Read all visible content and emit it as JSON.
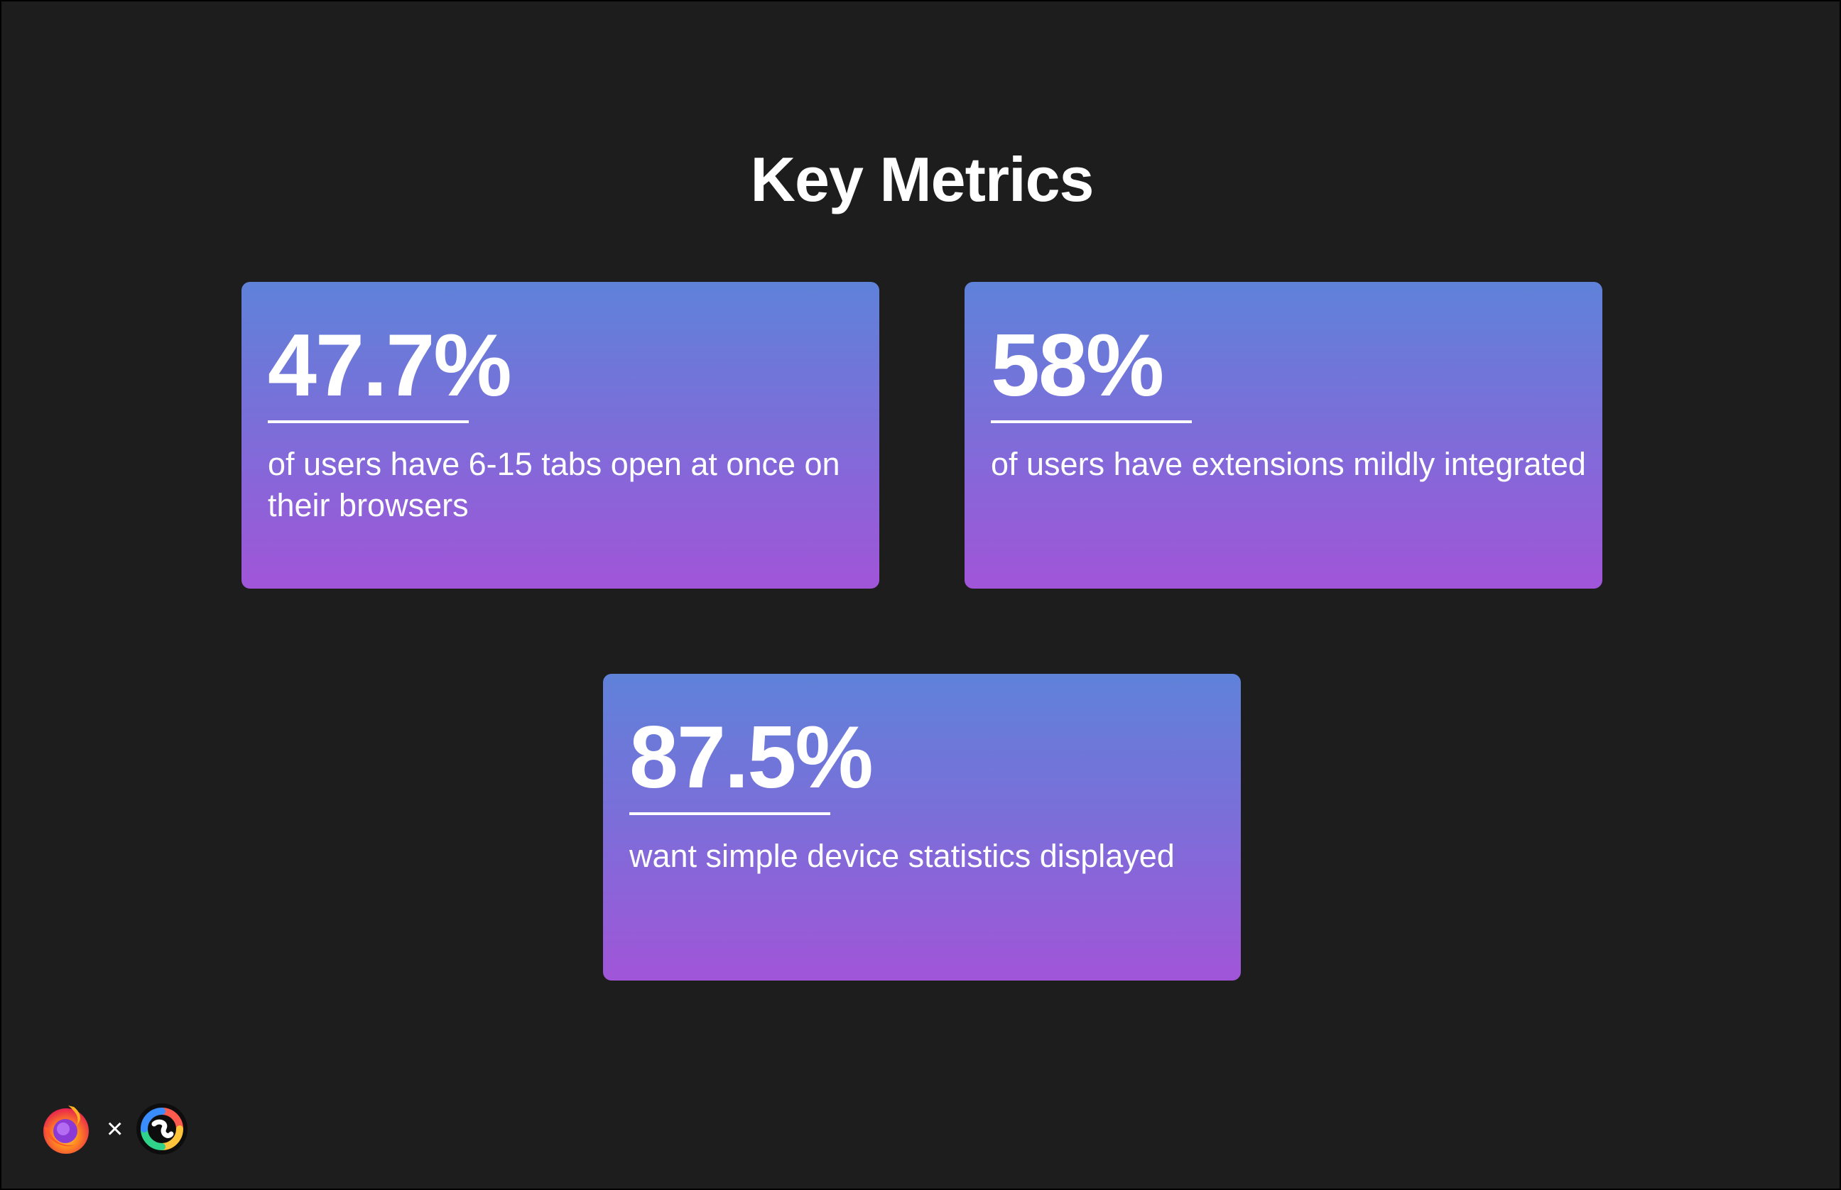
{
  "title": "Key Metrics",
  "metrics": [
    {
      "value": "47.7%",
      "description": "of users have 6-15 tabs open at once on their browsers"
    },
    {
      "value": "58%",
      "description": "of users have extensions mildly integrated"
    },
    {
      "value": "87.5%",
      "description": "want simple device statistics displayed"
    }
  ],
  "footer": {
    "separator": "×",
    "logos": [
      "firefox-logo",
      "colorful-swirl-logo"
    ]
  },
  "colors": {
    "background": "#1d1d1d",
    "card_gradient_top": "#5f82d9",
    "card_gradient_bottom": "#a155d8",
    "text": "#ffffff"
  }
}
